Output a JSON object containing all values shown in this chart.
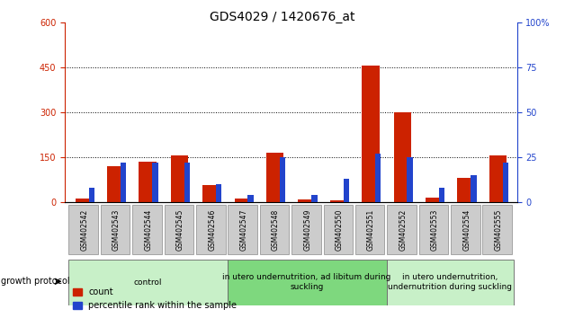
{
  "title": "GDS4029 / 1420676_at",
  "samples": [
    "GSM402542",
    "GSM402543",
    "GSM402544",
    "GSM402545",
    "GSM402546",
    "GSM402547",
    "GSM402548",
    "GSM402549",
    "GSM402550",
    "GSM402551",
    "GSM402552",
    "GSM402553",
    "GSM402554",
    "GSM402555"
  ],
  "count": [
    10,
    120,
    135,
    155,
    55,
    10,
    165,
    8,
    5,
    455,
    300,
    15,
    80,
    155
  ],
  "percentile": [
    8,
    22,
    22,
    22,
    10,
    4,
    25,
    4,
    13,
    27,
    25,
    8,
    15,
    22
  ],
  "groups": [
    {
      "label": "control",
      "start": 0,
      "end": 5,
      "color": "#c8f0c8"
    },
    {
      "label": "in utero undernutrition, ad libitum during\nsuckling",
      "start": 5,
      "end": 10,
      "color": "#7ed87e"
    },
    {
      "label": "in utero undernutrition,\nundernutrition during suckling",
      "start": 10,
      "end": 14,
      "color": "#c8f0c8"
    }
  ],
  "count_bar_width": 0.55,
  "pct_bar_width": 0.18,
  "count_color": "#cc2200",
  "percentile_color": "#2244cc",
  "ylim_left": [
    0,
    600
  ],
  "ylim_right": [
    0,
    100
  ],
  "yticks_left": [
    0,
    150,
    300,
    450,
    600
  ],
  "yticks_right": [
    0,
    25,
    50,
    75,
    100
  ],
  "growth_protocol_label": "growth protocol",
  "legend_count": "count",
  "legend_percentile": "percentile rank within the sample",
  "title_fontsize": 10,
  "tick_fontsize": 7,
  "sample_fontsize": 5.5,
  "group_fontsize": 6.5,
  "legend_fontsize": 7
}
